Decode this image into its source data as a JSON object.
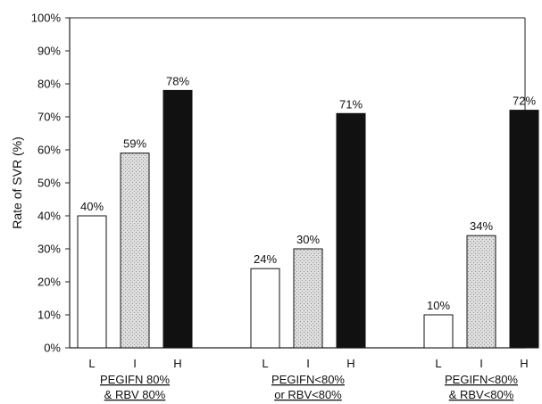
{
  "chart_data": {
    "type": "bar",
    "ylabel": "Rate of SVR (%)",
    "xlabel": "",
    "ylim": [
      0,
      100
    ],
    "yticks": [
      "0%",
      "10%",
      "20%",
      "30%",
      "40%",
      "50%",
      "60%",
      "70%",
      "80%",
      "90%",
      "100%"
    ],
    "grid": false,
    "bar_colors": {
      "L": "#ffffff",
      "I": "#d4d4d4",
      "H": "#111111"
    },
    "groups": [
      {
        "label_lines": [
          "PEGIFN  80%",
          "& RBV  80%"
        ],
        "bars": [
          {
            "category": "L",
            "value": 40,
            "label": "40%"
          },
          {
            "category": "I",
            "value": 59,
            "label": "59%"
          },
          {
            "category": "H",
            "value": 78,
            "label": "78%"
          }
        ]
      },
      {
        "label_lines": [
          "PEGIFN<80%",
          "or RBV<80%"
        ],
        "bars": [
          {
            "category": "L",
            "value": 24,
            "label": "24%"
          },
          {
            "category": "I",
            "value": 30,
            "label": "30%"
          },
          {
            "category": "H",
            "value": 71,
            "label": "71%"
          }
        ]
      },
      {
        "label_lines": [
          "PEGIFN<80%",
          "& RBV<80%"
        ],
        "bars": [
          {
            "category": "L",
            "value": 10,
            "label": "10%"
          },
          {
            "category": "I",
            "value": 34,
            "label": "34%"
          },
          {
            "category": "H",
            "value": 72,
            "label": "72%"
          }
        ]
      }
    ]
  }
}
